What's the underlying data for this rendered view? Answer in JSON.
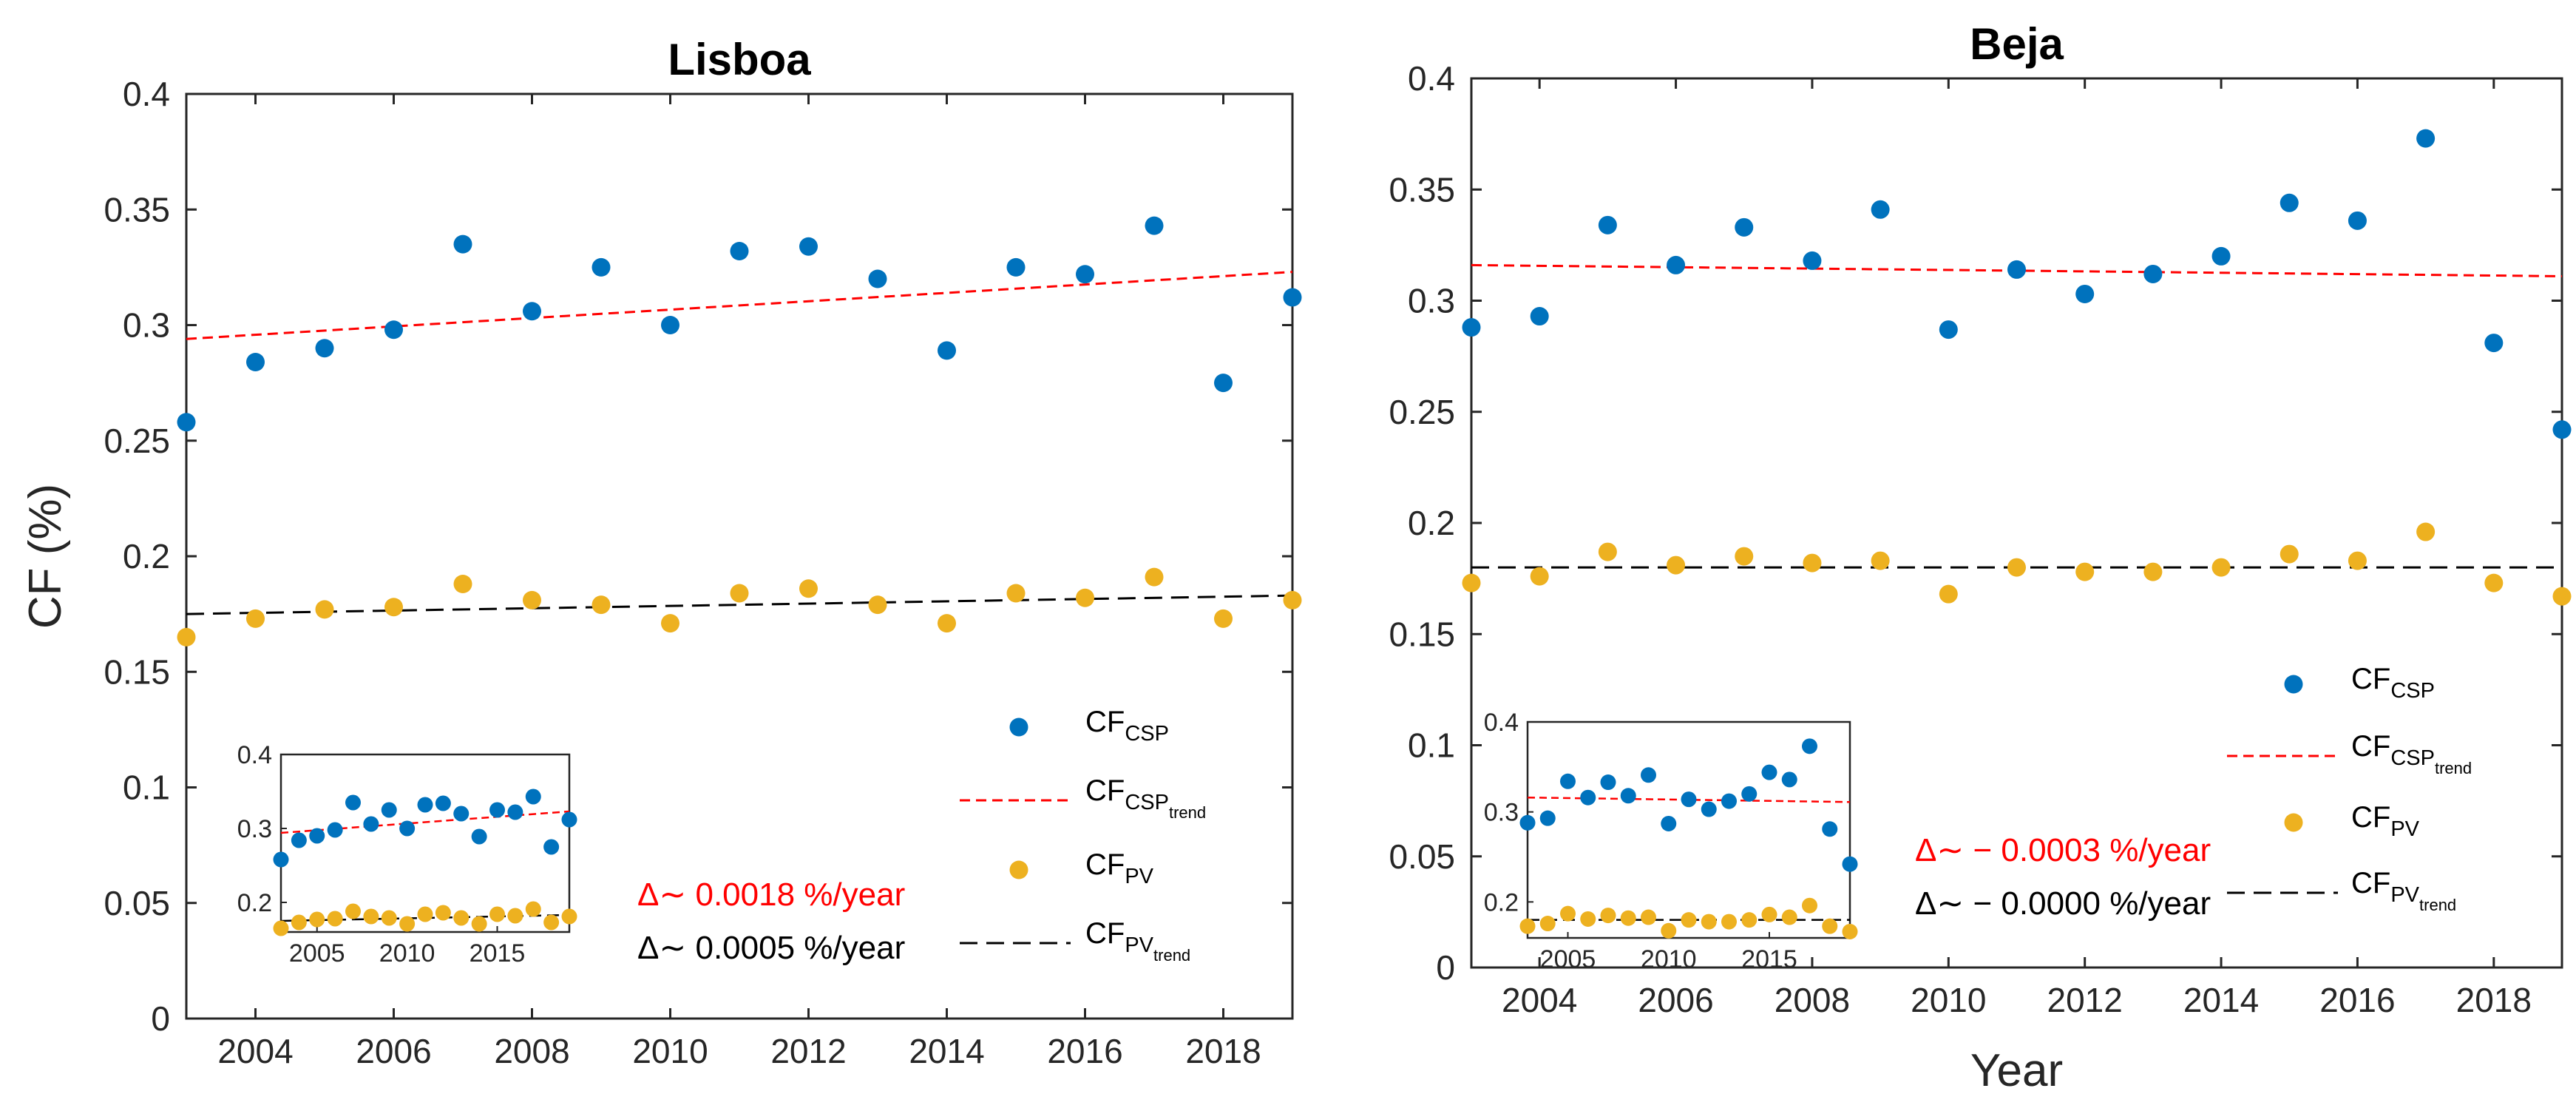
{
  "colors": {
    "csp": "#0072BD",
    "pv": "#EDB120",
    "csp_trend": "#FF0000",
    "pv_trend": "#000000",
    "axis": "#262626"
  },
  "chart_data": [
    {
      "type": "scatter",
      "title": "Lisboa",
      "xlabel": "",
      "ylabel": "CF (%)",
      "xlim": [
        2003,
        2019
      ],
      "ylim": [
        0,
        0.4
      ],
      "xticks": [
        "2004",
        "2006",
        "2008",
        "2010",
        "2012",
        "2014",
        "2016",
        "2018"
      ],
      "yticks": [
        "0",
        "0.05",
        "0.1",
        "0.15",
        "0.2",
        "0.25",
        "0.3",
        "0.35",
        "0.4"
      ],
      "x": [
        2003,
        2004,
        2005,
        2006,
        2007,
        2008,
        2009,
        2010,
        2011,
        2012,
        2013,
        2014,
        2015,
        2016,
        2017,
        2018,
        2019
      ],
      "series": [
        {
          "name": "CF_CSP",
          "values": [
            0.258,
            0.284,
            0.29,
            0.298,
            0.335,
            0.306,
            0.325,
            0.3,
            0.332,
            0.334,
            0.32,
            0.289,
            0.325,
            0.322,
            0.343,
            0.275,
            0.312
          ]
        },
        {
          "name": "CF_PV",
          "values": [
            0.165,
            0.173,
            0.177,
            0.178,
            0.188,
            0.181,
            0.179,
            0.171,
            0.184,
            0.186,
            0.179,
            0.171,
            0.184,
            0.182,
            0.191,
            0.173,
            0.181
          ]
        }
      ],
      "trends": [
        {
          "name": "CF_CSP_trend",
          "start": 0.294,
          "end": 0.323
        },
        {
          "name": "CF_PV_trend",
          "start": 0.175,
          "end": 0.183
        }
      ],
      "legend": {
        "csp": {
          "main": "CF",
          "sub": "CSP"
        },
        "csp_trend": {
          "main": "CF",
          "sub": "CSP",
          "subsub": "trend"
        },
        "pv": {
          "main": "CF",
          "sub": "PV"
        },
        "pv_trend": {
          "main": "CF",
          "sub": "PV",
          "subsub": "trend"
        }
      },
      "annotations": {
        "csp_rate": "Δ∼ 0.0018 %/year",
        "pv_rate": "Δ∼ 0.0005 %/year"
      },
      "inset": {
        "xlim": [
          2003,
          2019
        ],
        "ylim": [
          0.16,
          0.4
        ],
        "xticks": [
          "2005",
          "2010",
          "2015"
        ],
        "yticks": [
          "0.2",
          "0.3",
          "0.4"
        ]
      }
    },
    {
      "type": "scatter",
      "title": "Beja",
      "xlabel": "Year",
      "ylabel": "",
      "xlim": [
        2003,
        2019
      ],
      "ylim": [
        0,
        0.4
      ],
      "xticks": [
        "2004",
        "2006",
        "2008",
        "2010",
        "2012",
        "2014",
        "2016",
        "2018"
      ],
      "yticks": [
        "0",
        "0.05",
        "0.1",
        "0.15",
        "0.2",
        "0.25",
        "0.3",
        "0.35",
        "0.4"
      ],
      "x": [
        2003,
        2004,
        2005,
        2006,
        2007,
        2008,
        2009,
        2010,
        2011,
        2012,
        2013,
        2014,
        2015,
        2016,
        2017,
        2018,
        2019
      ],
      "series": [
        {
          "name": "CF_CSP",
          "values": [
            0.288,
            0.293,
            0.334,
            0.316,
            0.333,
            0.318,
            0.341,
            0.287,
            0.314,
            0.303,
            0.312,
            0.32,
            0.344,
            0.336,
            0.373,
            0.281,
            0.242
          ]
        },
        {
          "name": "CF_PV",
          "values": [
            0.173,
            0.176,
            0.187,
            0.181,
            0.185,
            0.182,
            0.183,
            0.168,
            0.18,
            0.178,
            0.178,
            0.18,
            0.186,
            0.183,
            0.196,
            0.173,
            0.167
          ]
        }
      ],
      "trends": [
        {
          "name": "CF_CSP_trend",
          "start": 0.316,
          "end": 0.311
        },
        {
          "name": "CF_PV_trend",
          "start": 0.18,
          "end": 0.18
        }
      ],
      "legend": {
        "csp": {
          "main": "CF",
          "sub": "CSP"
        },
        "csp_trend": {
          "main": "CF",
          "sub": "CSP",
          "subsub": "trend"
        },
        "pv": {
          "main": "CF",
          "sub": "PV"
        },
        "pv_trend": {
          "main": "CF",
          "sub": "PV",
          "subsub": "trend"
        }
      },
      "annotations": {
        "csp_rate": "Δ∼ − 0.0003 %/year",
        "pv_rate": "Δ∼ − 0.0000 %/year"
      },
      "inset": {
        "xlim": [
          2003,
          2019
        ],
        "ylim": [
          0.16,
          0.4
        ],
        "xticks": [
          "2005",
          "2010",
          "2015"
        ],
        "yticks": [
          "0.2",
          "0.3",
          "0.4"
        ]
      }
    }
  ]
}
